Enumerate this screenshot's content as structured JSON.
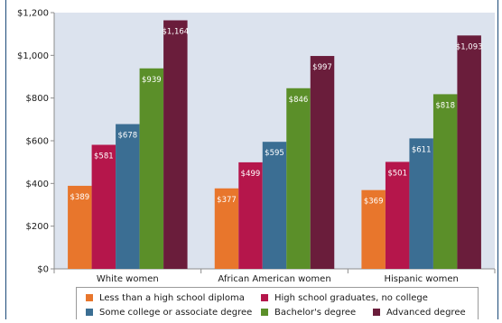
{
  "chart_data": {
    "type": "bar",
    "categories": [
      "White women",
      "African American women",
      "Hispanic women"
    ],
    "series": [
      {
        "name": "Less than a high school diploma",
        "color": "#e8762c",
        "values": [
          389,
          377,
          369
        ],
        "labels": [
          "$389",
          "$377",
          "$369"
        ]
      },
      {
        "name": "High school graduates, no college",
        "color": "#b5164b",
        "values": [
          581,
          499,
          501
        ],
        "labels": [
          "$581",
          "$499",
          "$501"
        ]
      },
      {
        "name": "Some college or associate degree",
        "color": "#3b6e93",
        "values": [
          678,
          595,
          611
        ],
        "labels": [
          "$678",
          "$595",
          "$611"
        ]
      },
      {
        "name": "Bachelor's degree",
        "color": "#5b8f29",
        "values": [
          939,
          846,
          818
        ],
        "labels": [
          "$939",
          "$846",
          "$818"
        ]
      },
      {
        "name": "Advanced degree",
        "color": "#6a1d3b",
        "values": [
          1164,
          997,
          1093
        ],
        "labels": [
          "$1,164",
          "$997",
          "$1,093"
        ]
      }
    ],
    "yticks": [
      0,
      200,
      400,
      600,
      800,
      1000,
      1200
    ],
    "ytick_labels": [
      "$0",
      "$200",
      "$400",
      "$600",
      "$800",
      "$1,000",
      "$1,200"
    ],
    "ylim": [
      0,
      1200
    ],
    "grid": false,
    "legend_position": "bottom",
    "plot_background": "#dce3ee"
  }
}
